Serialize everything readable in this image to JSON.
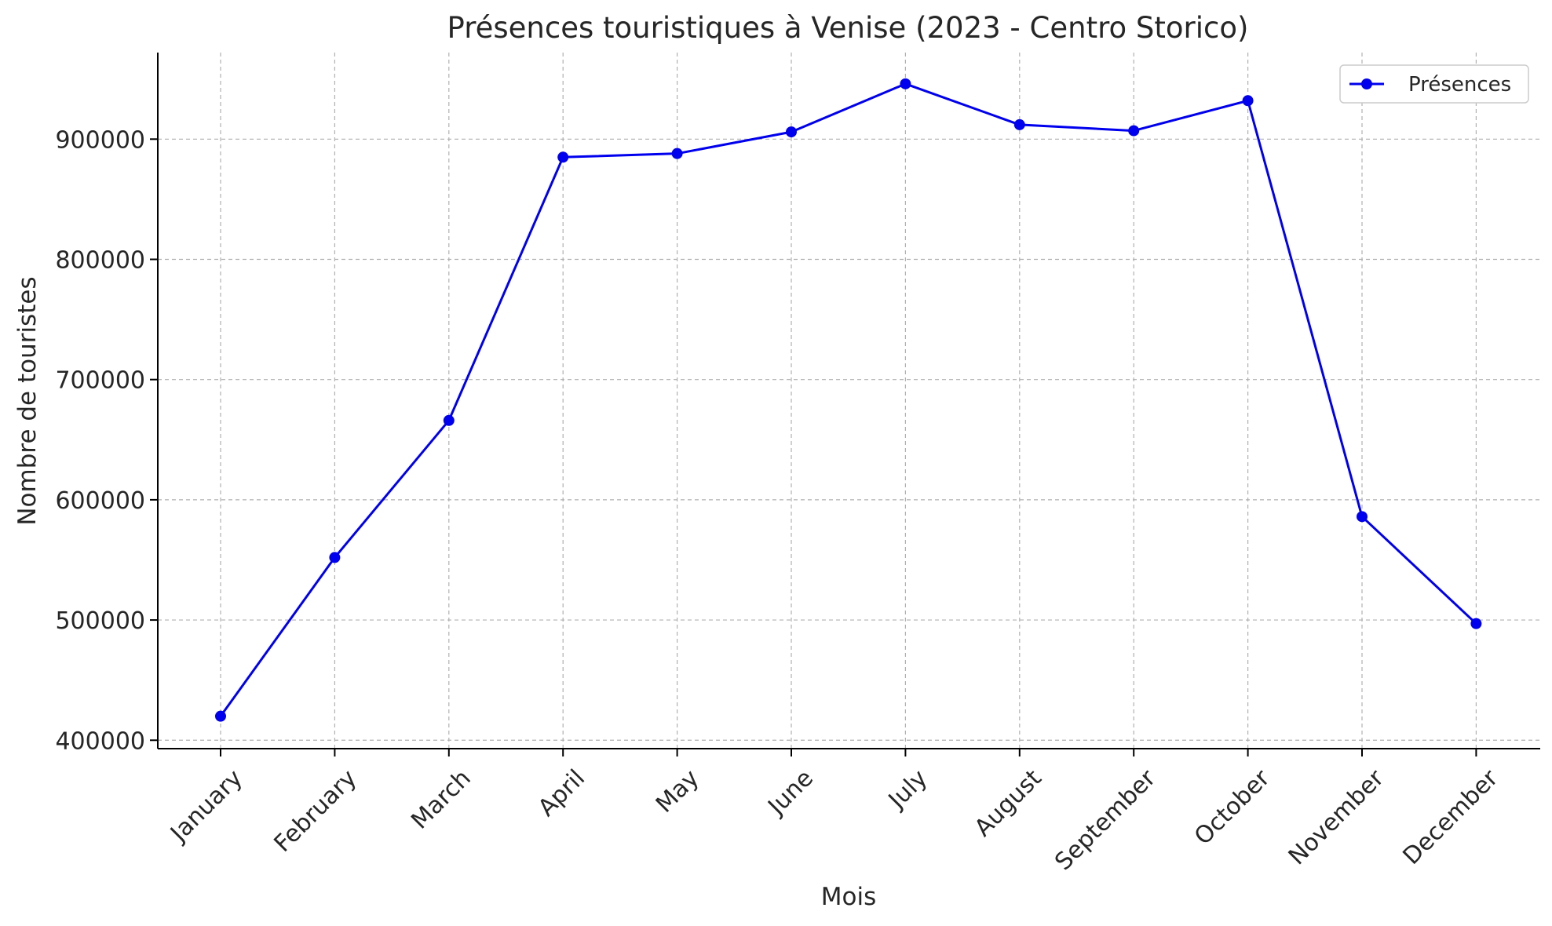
{
  "chart_data": {
    "type": "line",
    "title": "Présences touristiques à Venise (2023 - Centro Storico)",
    "xlabel": "Mois",
    "ylabel": "Nombre de touristes",
    "categories": [
      "January",
      "February",
      "March",
      "April",
      "May",
      "June",
      "July",
      "August",
      "September",
      "October",
      "November",
      "December"
    ],
    "series": [
      {
        "name": "Présences",
        "color": "#0000ee",
        "marker": "circle",
        "values": [
          420000,
          552000,
          666000,
          885000,
          888000,
          906000,
          946000,
          912000,
          907000,
          932000,
          586000,
          497000
        ]
      }
    ],
    "yticks": [
      "400000",
      "500000",
      "600000",
      "700000",
      "800000",
      "900000"
    ],
    "ylim": [
      393000,
      972000
    ],
    "grid": true,
    "legend_position": "top-right"
  }
}
